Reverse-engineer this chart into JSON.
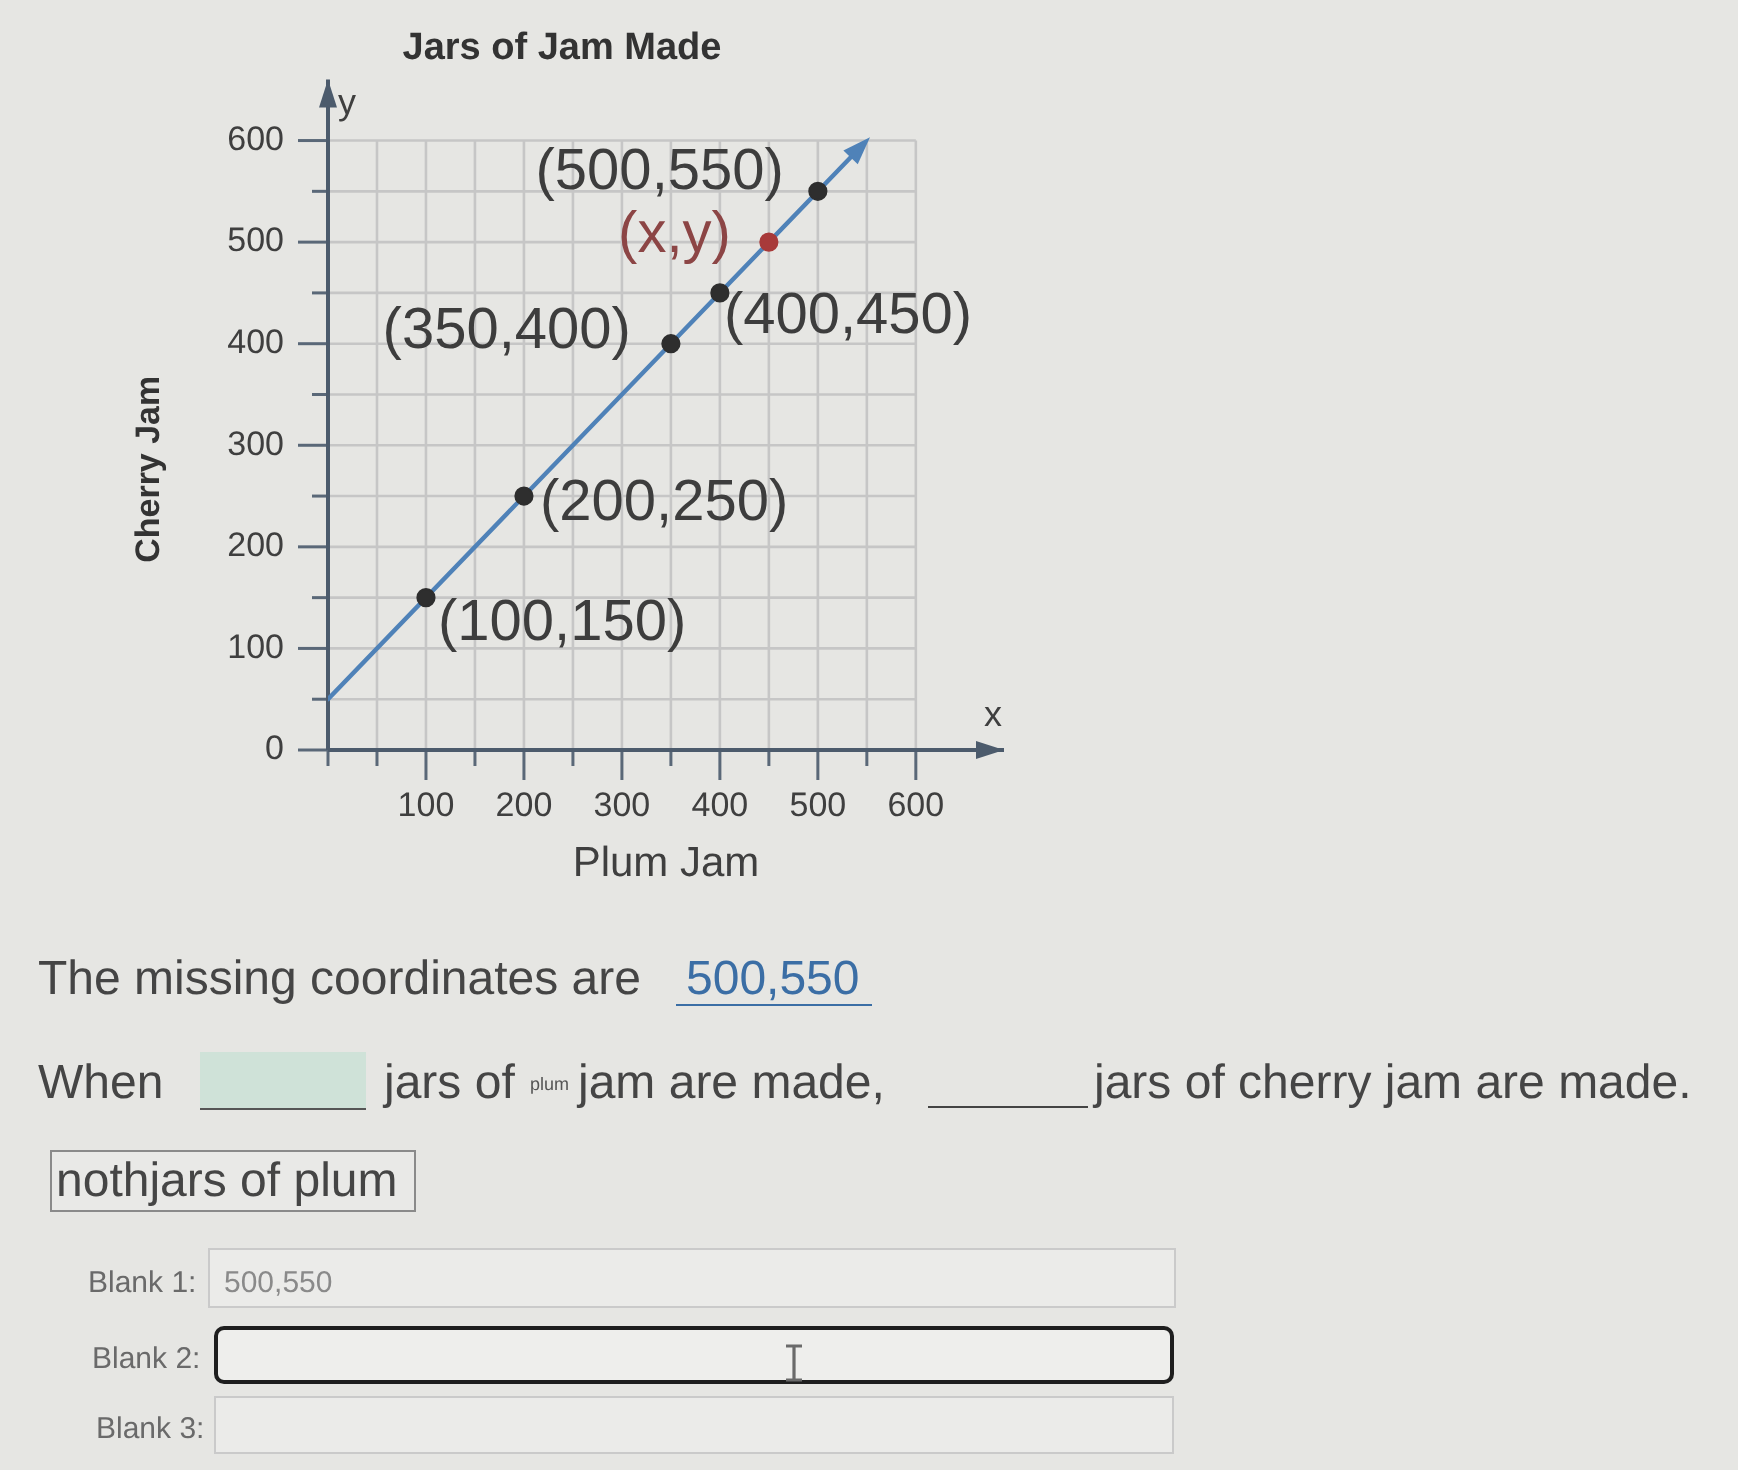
{
  "chart_data": {
    "type": "line",
    "title": "Jars of Jam Made",
    "xlabel": "Plum Jam",
    "ylabel": "Cherry Jam",
    "xlim": [
      0,
      690
    ],
    "ylim": [
      0,
      660
    ],
    "xticks": [
      {
        "value": 0,
        "label": null
      },
      {
        "value": 50,
        "label": null
      },
      100,
      {
        "value": 150,
        "label": null
      },
      200,
      {
        "value": 250,
        "label": null
      },
      300,
      {
        "value": 350,
        "label": null
      },
      400,
      {
        "value": 450,
        "label": null
      },
      500,
      {
        "value": 550,
        "label": null
      },
      600
    ],
    "yticks": [
      0,
      {
        "value": 50,
        "label": null
      },
      100,
      {
        "value": 150,
        "label": null
      },
      200,
      {
        "value": 250,
        "label": null
      },
      300,
      {
        "value": 350,
        "label": null
      },
      400,
      {
        "value": 450,
        "label": null
      },
      500,
      {
        "value": 550,
        "label": null
      },
      600
    ],
    "grid": true,
    "series": [
      {
        "type": "line",
        "color": "#4f82b8",
        "x": [
          0,
          540
        ],
        "values": [
          50,
          590
        ]
      },
      {
        "type": "scatter",
        "marker": "circle",
        "colors": [
          "#2e2e2e",
          "#2e2e2e",
          "#2e2e2e",
          "#2e2e2e",
          "#a83a3a",
          "#2e2e2e"
        ],
        "x": [
          100,
          200,
          350,
          400,
          450,
          500
        ],
        "values": [
          150,
          250,
          400,
          450,
          500,
          550
        ]
      }
    ],
    "annotations": [
      {
        "text": "(500,550)",
        "x": 500,
        "y": 550
      },
      {
        "text": "(x,y)",
        "x": 450,
        "y": 500
      },
      {
        "text": "(350,400)",
        "x": 350,
        "y": 400
      },
      {
        "text": "(400,450)",
        "x": 400,
        "y": 450
      },
      {
        "text": "(200,250)",
        "x": 200,
        "y": 250
      },
      {
        "text": "(100,150)",
        "x": 100,
        "y": 150
      },
      "y",
      "x",
      "The missing coordinates are",
      "500,550",
      "When",
      "jars of",
      "plum",
      "jam are made,",
      "jars of cherry jam are made.",
      "nothjars of plum",
      "Blank 1:",
      "500,550",
      "Blank 2:",
      "Blank 3:"
    ]
  }
}
